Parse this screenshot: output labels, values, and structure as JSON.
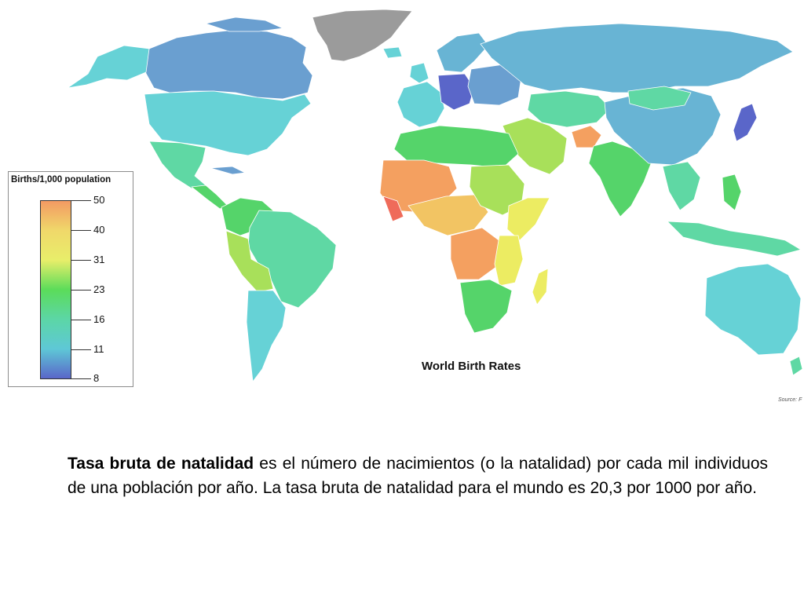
{
  "map": {
    "title": "World Birth Rates",
    "source": "Source: F",
    "colors": {
      "gray": "#9b9b9b",
      "blue_dark": "#5a66c9",
      "blue": "#6a9fd0",
      "blue_light": "#68b4d4",
      "cyan": "#66d2d6",
      "teal": "#5fd8a4",
      "green": "#55d46a",
      "green_yellow": "#a8e05a",
      "yellow": "#ecec62",
      "light_orange": "#f2c463",
      "orange": "#f4a060",
      "red": "#ef6b5a"
    }
  },
  "legend": {
    "title": "Births/1,000 population",
    "ticks": [
      "50",
      "40",
      "31",
      "23",
      "16",
      "11",
      "8"
    ],
    "ramp_colors": [
      "#f39a63",
      "#f0d86a",
      "#e8ee6a",
      "#5bdc5a",
      "#5cd6a6",
      "#5ec8d6",
      "#5a66c9"
    ]
  },
  "caption": {
    "bold_term": "Tasa bruta de natalidad",
    "text": " es el número de nacimientos (o la natalidad) por cada mil individuos de una población por año. La tasa bruta de natalidad para el mundo es 20,3 por 1000 por año."
  }
}
